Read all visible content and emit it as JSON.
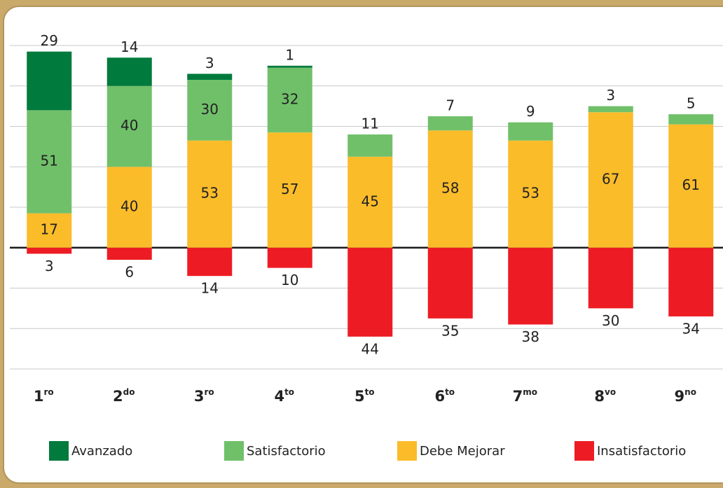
{
  "chart_data": {
    "type": "diverging_stacked_bar",
    "categories": [
      "1ro",
      "2do",
      "3ro",
      "4to",
      "5to",
      "6to",
      "7mo",
      "8vo",
      "9no"
    ],
    "series": [
      {
        "name": "Avanzado",
        "color": "#007a3d",
        "values": [
          29,
          14,
          3,
          1,
          null,
          null,
          null,
          null,
          null
        ]
      },
      {
        "name": "Satisfactorio",
        "color": "#70c06a",
        "values": [
          51,
          40,
          30,
          32,
          11,
          7,
          9,
          3,
          5
        ]
      },
      {
        "name": "Debe Mejorar",
        "color": "#fbbc2a",
        "values": [
          17,
          40,
          53,
          57,
          45,
          58,
          53,
          67,
          61
        ]
      },
      {
        "name": "Insatisfactorio",
        "color": "#ed1c24",
        "values": [
          -3,
          -6,
          -14,
          -10,
          -44,
          -35,
          -38,
          -30,
          -34
        ],
        "value_labels": [
          "3",
          "6",
          "14",
          "10",
          "44",
          "35",
          "38",
          "30",
          "34"
        ]
      }
    ],
    "ylim": [
      -60,
      100
    ],
    "yticks": [
      -60,
      -40,
      -20,
      0,
      20,
      40,
      60,
      80,
      100
    ],
    "grid": true
  }
}
